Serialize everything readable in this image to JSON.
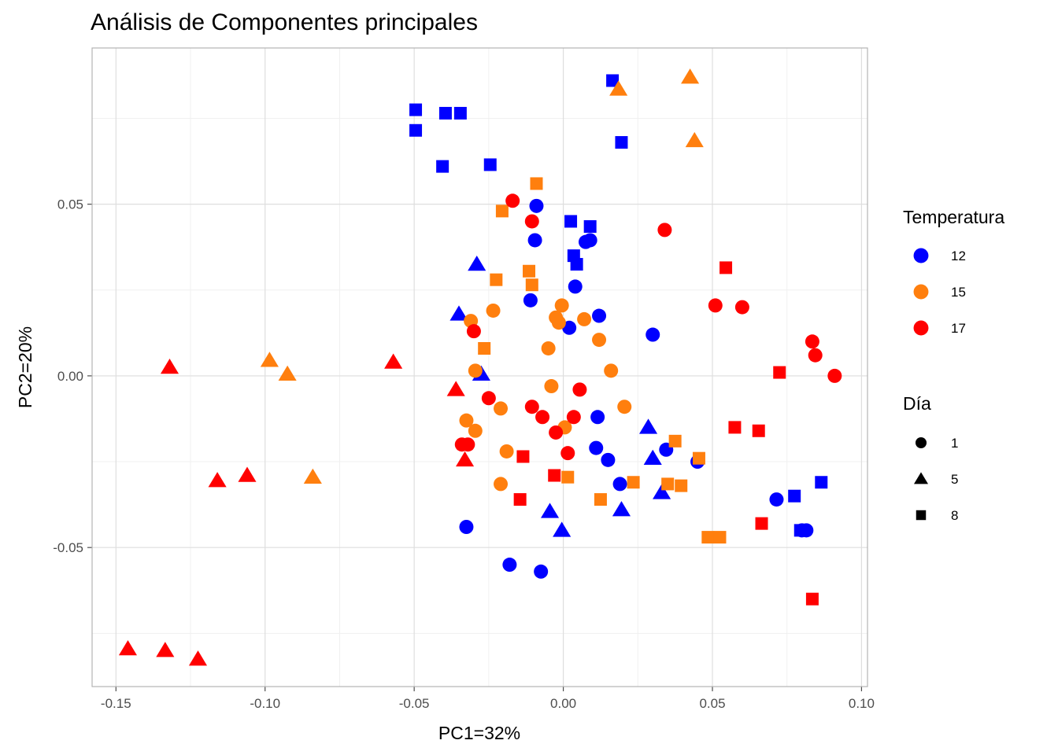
{
  "chart_data": {
    "type": "scatter",
    "title": "Análisis de Componentes principales",
    "xlabel": "PC1=32%",
    "ylabel": "PC2=20%",
    "xlim": [
      -0.158,
      0.102
    ],
    "ylim": [
      -0.0905,
      0.0955
    ],
    "xticks": [
      -0.15,
      -0.1,
      -0.05,
      0.0,
      0.05,
      0.1
    ],
    "xtick_labels": [
      "-0.15",
      "-0.10",
      "-0.05",
      "0.00",
      "0.05",
      "0.10"
    ],
    "yticks": [
      -0.05,
      0.0,
      0.05
    ],
    "ytick_labels": [
      "-0.05",
      "0.00",
      "0.05"
    ],
    "grid": true,
    "legend_position": "right",
    "legends": {
      "color": {
        "title": "Temperatura",
        "entries": [
          {
            "label": "12",
            "color": "#0000ff"
          },
          {
            "label": "15",
            "color": "#ff7f0e"
          },
          {
            "label": "17",
            "color": "#ff0000"
          }
        ]
      },
      "shape": {
        "title": "Día",
        "entries": [
          {
            "label": "1",
            "shape": "circle"
          },
          {
            "label": "5",
            "shape": "triangle"
          },
          {
            "label": "8",
            "shape": "square"
          }
        ]
      }
    },
    "series": [
      {
        "name": "12",
        "color": "#0000ff",
        "day": "1",
        "shape": "circle",
        "points": [
          [
            -0.009,
            0.0495
          ],
          [
            -0.0095,
            0.0395
          ],
          [
            0.0075,
            0.039
          ],
          [
            0.009,
            0.0395
          ],
          [
            -0.011,
            0.022
          ],
          [
            0.004,
            0.026
          ],
          [
            0.012,
            0.0175
          ],
          [
            0.002,
            0.014
          ],
          [
            0.03,
            0.012
          ],
          [
            0.0115,
            -0.012
          ],
          [
            0.011,
            -0.021
          ],
          [
            0.015,
            -0.0245
          ],
          [
            0.019,
            -0.0315
          ],
          [
            0.0345,
            -0.0215
          ],
          [
            0.045,
            -0.025
          ],
          [
            -0.0325,
            -0.044
          ],
          [
            -0.018,
            -0.055
          ],
          [
            -0.0075,
            -0.057
          ],
          [
            0.0715,
            -0.036
          ],
          [
            0.08,
            -0.045
          ],
          [
            0.0815,
            -0.045
          ]
        ]
      },
      {
        "name": "12",
        "color": "#0000ff",
        "day": "5",
        "shape": "triangle",
        "points": [
          [
            -0.029,
            0.0325
          ],
          [
            -0.035,
            0.018
          ],
          [
            -0.0275,
            0.0005
          ],
          [
            0.0285,
            -0.015
          ],
          [
            0.03,
            -0.024
          ],
          [
            0.033,
            -0.034
          ],
          [
            0.0195,
            -0.039
          ],
          [
            -0.0045,
            -0.0395
          ],
          [
            -0.0005,
            -0.045
          ]
        ]
      },
      {
        "name": "12",
        "color": "#0000ff",
        "day": "8",
        "shape": "square",
        "points": [
          [
            0.0165,
            0.086
          ],
          [
            -0.0495,
            0.0775
          ],
          [
            -0.0495,
            0.0715
          ],
          [
            -0.0395,
            0.0765
          ],
          [
            -0.0345,
            0.0765
          ],
          [
            -0.0405,
            0.061
          ],
          [
            -0.0245,
            0.0615
          ],
          [
            0.0195,
            0.068
          ],
          [
            0.0025,
            0.045
          ],
          [
            0.009,
            0.0435
          ],
          [
            0.0035,
            0.035
          ],
          [
            0.0045,
            0.0325
          ],
          [
            0.0775,
            -0.035
          ],
          [
            0.0795,
            -0.045
          ],
          [
            0.0865,
            -0.031
          ]
        ]
      },
      {
        "name": "15",
        "color": "#ff7f0e",
        "day": "1",
        "shape": "circle",
        "points": [
          [
            -0.031,
            0.016
          ],
          [
            -0.0235,
            0.019
          ],
          [
            -0.0005,
            0.0205
          ],
          [
            -0.0025,
            0.017
          ],
          [
            -0.0015,
            0.0155
          ],
          [
            0.007,
            0.0165
          ],
          [
            -0.005,
            0.008
          ],
          [
            0.012,
            0.0105
          ],
          [
            -0.0295,
            0.0015
          ],
          [
            0.016,
            0.0015
          ],
          [
            -0.004,
            -0.003
          ],
          [
            -0.0325,
            -0.013
          ],
          [
            -0.021,
            -0.0095
          ],
          [
            0.0205,
            -0.009
          ],
          [
            -0.0295,
            -0.016
          ],
          [
            0.0005,
            -0.015
          ],
          [
            -0.019,
            -0.022
          ],
          [
            -0.021,
            -0.0315
          ]
        ]
      },
      {
        "name": "15",
        "color": "#ff7f0e",
        "day": "5",
        "shape": "triangle",
        "points": [
          [
            0.0425,
            0.087
          ],
          [
            0.0185,
            0.0835
          ],
          [
            0.044,
            0.0685
          ],
          [
            -0.0985,
            0.0045
          ],
          [
            -0.0925,
            0.0005
          ],
          [
            -0.084,
            -0.0295
          ]
        ]
      },
      {
        "name": "15",
        "color": "#ff7f0e",
        "day": "8",
        "shape": "square",
        "points": [
          [
            -0.009,
            0.056
          ],
          [
            -0.0205,
            0.048
          ],
          [
            -0.0115,
            0.0305
          ],
          [
            -0.0105,
            0.0265
          ],
          [
            -0.0225,
            0.028
          ],
          [
            -0.0265,
            0.008
          ],
          [
            0.0375,
            -0.019
          ],
          [
            0.0455,
            -0.024
          ],
          [
            0.0235,
            -0.031
          ],
          [
            0.035,
            -0.0315
          ],
          [
            0.0395,
            -0.032
          ],
          [
            0.0015,
            -0.0295
          ],
          [
            0.0125,
            -0.036
          ],
          [
            0.0485,
            -0.047
          ],
          [
            0.0525,
            -0.047
          ]
        ]
      },
      {
        "name": "17",
        "color": "#ff0000",
        "day": "1",
        "shape": "circle",
        "points": [
          [
            -0.017,
            0.051
          ],
          [
            -0.0105,
            0.045
          ],
          [
            0.034,
            0.0425
          ],
          [
            0.051,
            0.0205
          ],
          [
            0.06,
            0.02
          ],
          [
            -0.03,
            0.013
          ],
          [
            0.0835,
            0.01
          ],
          [
            0.0845,
            0.006
          ],
          [
            0.091,
            0.0
          ],
          [
            0.0055,
            -0.004
          ],
          [
            -0.025,
            -0.0065
          ],
          [
            -0.0105,
            -0.009
          ],
          [
            -0.007,
            -0.012
          ],
          [
            0.0035,
            -0.012
          ],
          [
            -0.0025,
            -0.0165
          ],
          [
            0.0015,
            -0.0225
          ],
          [
            -0.034,
            -0.02
          ],
          [
            -0.032,
            -0.02
          ]
        ]
      },
      {
        "name": "17",
        "color": "#ff0000",
        "day": "5",
        "shape": "triangle",
        "points": [
          [
            -0.132,
            0.0025
          ],
          [
            -0.057,
            0.004
          ],
          [
            -0.036,
            -0.004
          ],
          [
            -0.033,
            -0.0245
          ],
          [
            -0.116,
            -0.0305
          ],
          [
            -0.106,
            -0.029
          ],
          [
            -0.146,
            -0.0795
          ],
          [
            -0.1335,
            -0.08
          ],
          [
            -0.1225,
            -0.0825
          ]
        ]
      },
      {
        "name": "17",
        "color": "#ff0000",
        "day": "8",
        "shape": "square",
        "points": [
          [
            0.0545,
            0.0315
          ],
          [
            0.0725,
            0.001
          ],
          [
            0.0575,
            -0.015
          ],
          [
            0.0655,
            -0.016
          ],
          [
            -0.0135,
            -0.0235
          ],
          [
            -0.003,
            -0.029
          ],
          [
            -0.0145,
            -0.036
          ],
          [
            0.0665,
            -0.043
          ],
          [
            0.0835,
            -0.065
          ]
        ]
      }
    ]
  }
}
